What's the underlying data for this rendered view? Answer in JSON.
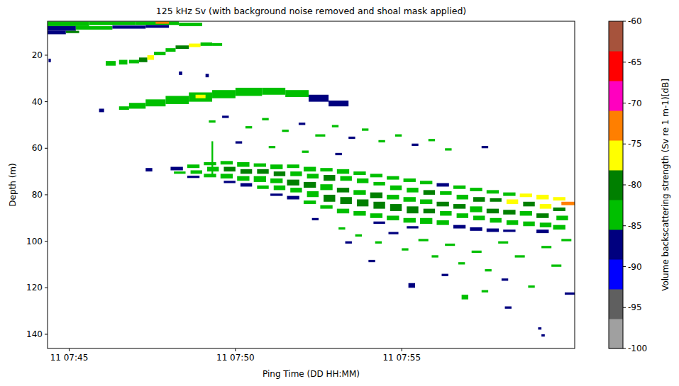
{
  "chart_data": {
    "type": "heatmap",
    "title": "125 kHz Sv (with background noise removed and shoal mask applied)",
    "x_label": "Ping Time (DD HH:MM)",
    "y_label": "Depth (m)",
    "xlim": [
      44.35,
      60.2
    ],
    "xticks": [
      {
        "value": 45,
        "label": "11 07:45"
      },
      {
        "value": 50,
        "label": "11 07:50"
      },
      {
        "value": 55,
        "label": "11 07:55"
      }
    ],
    "ylim": [
      146.1,
      5.4
    ],
    "yticks": [
      20,
      40,
      60,
      80,
      100,
      120,
      140
    ],
    "grid": false,
    "colorbar": {
      "label": "Volume backscattering strength (Sv re 1 m-1)[dB]",
      "range": [
        -100,
        -60
      ],
      "ticks": [
        -100,
        -95,
        -90,
        -85,
        -80,
        -75,
        -70,
        -65,
        -60
      ],
      "colors": [
        "#a0a0a0",
        "#5f5f5f",
        "#0000ff",
        "#00007f",
        "#00bf00",
        "#007f00",
        "#ffff00",
        "#ff7f00",
        "#ff00bf",
        "#ff0000",
        "#a6533c"
      ]
    },
    "cells": [
      [
        44.35,
        45.6,
        5.5,
        7.5,
        -84
      ],
      [
        44.35,
        45.2,
        7.5,
        9.5,
        -86
      ],
      [
        44.35,
        44.9,
        9.5,
        11,
        -88
      ],
      [
        44.9,
        45.3,
        9.5,
        10.5,
        -80
      ],
      [
        45.6,
        47.0,
        5.5,
        7,
        -82
      ],
      [
        45.2,
        46.3,
        7.5,
        9,
        -84
      ],
      [
        46.3,
        47.3,
        7.2,
        8.6,
        -87
      ],
      [
        47.0,
        48.3,
        5.5,
        7,
        -83
      ],
      [
        47.3,
        48.0,
        7,
        8.2,
        -86
      ],
      [
        48.3,
        49.0,
        6,
        7.5,
        -85
      ],
      [
        47.6,
        48.0,
        5.5,
        6.5,
        -72
      ],
      [
        44.38,
        44.45,
        21.5,
        23,
        -86
      ],
      [
        46.1,
        46.4,
        22.5,
        24.5,
        -83
      ],
      [
        46.5,
        46.75,
        22,
        24,
        -85
      ],
      [
        46.8,
        47.1,
        22,
        23.5,
        -82
      ],
      [
        47.1,
        47.35,
        21,
        23,
        -80
      ],
      [
        47.35,
        47.55,
        20,
        22,
        -76
      ],
      [
        47.55,
        47.9,
        18.5,
        20,
        -82
      ],
      [
        47.9,
        48.2,
        17,
        18.5,
        -83
      ],
      [
        48.2,
        48.6,
        15.8,
        17.3,
        -81
      ],
      [
        48.6,
        48.95,
        15,
        16.5,
        -77
      ],
      [
        48.95,
        49.3,
        14.5,
        16,
        -82
      ],
      [
        49.3,
        49.6,
        14.8,
        16,
        -85
      ],
      [
        48.3,
        48.4,
        27,
        28.5,
        -87
      ],
      [
        49.1,
        49.2,
        28,
        29.5,
        -86
      ],
      [
        45.9,
        46.05,
        43,
        44.5,
        -86
      ],
      [
        46.5,
        46.8,
        42,
        43.5,
        -85
      ],
      [
        46.8,
        47.3,
        40.5,
        43,
        -84
      ],
      [
        47.3,
        47.9,
        39,
        42,
        -83
      ],
      [
        47.9,
        48.6,
        37.5,
        41,
        -82
      ],
      [
        48.6,
        49.3,
        36,
        40,
        -83
      ],
      [
        49.3,
        50.0,
        35,
        38.5,
        -84
      ],
      [
        50.0,
        50.8,
        34,
        37.5,
        -82
      ],
      [
        50.8,
        51.5,
        34,
        37,
        -84
      ],
      [
        51.5,
        52.2,
        35,
        38,
        -85
      ],
      [
        52.2,
        52.8,
        37,
        40,
        -86
      ],
      [
        52.8,
        53.4,
        39.5,
        42,
        -87
      ],
      [
        48.8,
        49.1,
        37,
        38.5,
        -76
      ],
      [
        49.2,
        49.4,
        48,
        49,
        -85
      ],
      [
        49.6,
        49.8,
        46,
        47,
        -86
      ],
      [
        50.3,
        50.5,
        50.5,
        51.5,
        -84
      ],
      [
        50.8,
        51.0,
        47,
        48,
        -85
      ],
      [
        51.4,
        51.6,
        52,
        53,
        -83
      ],
      [
        51.9,
        52.1,
        49,
        50,
        -86
      ],
      [
        52.4,
        52.7,
        54,
        55,
        -84
      ],
      [
        52.9,
        53.1,
        50,
        51,
        -85
      ],
      [
        53.4,
        53.6,
        55,
        56,
        -86
      ],
      [
        53.8,
        54.0,
        51.5,
        52.5,
        -84
      ],
      [
        54.3,
        54.5,
        56.5,
        57.5,
        -85
      ],
      [
        54.8,
        55.0,
        54,
        55,
        -83
      ],
      [
        55.3,
        55.5,
        58,
        59,
        -86
      ],
      [
        55.8,
        56.0,
        56,
        57,
        -84
      ],
      [
        56.3,
        56.5,
        60,
        61,
        -85
      ],
      [
        57.4,
        57.6,
        59,
        60,
        -87
      ],
      [
        50.0,
        50.2,
        57,
        58,
        -86
      ],
      [
        51.0,
        51.2,
        59,
        60,
        -84
      ],
      [
        52.0,
        52.2,
        61,
        62,
        -85
      ],
      [
        53.0,
        53.2,
        62,
        63,
        -86
      ],
      [
        49.28,
        49.33,
        57,
        72,
        -84
      ],
      [
        47.3,
        47.5,
        68.5,
        70,
        -86
      ],
      [
        48.05,
        48.42,
        68,
        69.5,
        -86
      ],
      [
        48.15,
        48.5,
        70,
        71,
        -84
      ],
      [
        48.55,
        48.92,
        67,
        68.5,
        -85
      ],
      [
        48.65,
        49.0,
        69.5,
        71,
        -83
      ],
      [
        48.55,
        48.92,
        71.8,
        72.8,
        -86
      ],
      [
        49.05,
        49.42,
        66,
        67.3,
        -84
      ],
      [
        49.15,
        49.5,
        68,
        70,
        -82
      ],
      [
        49.05,
        49.42,
        71,
        72.5,
        -85
      ],
      [
        49.55,
        49.92,
        65.5,
        67,
        -83
      ],
      [
        49.65,
        50.0,
        68,
        70,
        -81
      ],
      [
        49.55,
        49.92,
        71,
        73,
        -84
      ],
      [
        49.65,
        50.0,
        74,
        75,
        -86
      ],
      [
        50.05,
        50.42,
        66,
        68,
        -82
      ],
      [
        50.15,
        50.5,
        69,
        71,
        -80
      ],
      [
        50.05,
        50.42,
        72,
        74,
        -83
      ],
      [
        50.15,
        50.5,
        75,
        76.5,
        -86
      ],
      [
        50.55,
        50.92,
        66.5,
        68,
        -84
      ],
      [
        50.65,
        51.0,
        69,
        71,
        -81
      ],
      [
        50.55,
        50.92,
        72,
        74.5,
        -82
      ],
      [
        50.65,
        51.0,
        76,
        77.5,
        -85
      ],
      [
        51.05,
        51.42,
        67,
        69,
        -83
      ],
      [
        51.15,
        51.5,
        70,
        72,
        -81
      ],
      [
        51.05,
        51.42,
        73,
        75,
        -82
      ],
      [
        51.15,
        51.5,
        76,
        78,
        -84
      ],
      [
        51.05,
        51.42,
        79.5,
        80.5,
        -87
      ],
      [
        51.55,
        51.92,
        67,
        68.5,
        -82
      ],
      [
        51.65,
        52.0,
        70,
        72,
        -84
      ],
      [
        51.55,
        51.92,
        73.5,
        76,
        -81
      ],
      [
        51.65,
        52.0,
        77,
        79,
        -83
      ],
      [
        51.55,
        51.92,
        80.5,
        82,
        -86
      ],
      [
        52.05,
        52.42,
        68,
        70,
        -83
      ],
      [
        52.15,
        52.5,
        71,
        73,
        -82
      ],
      [
        52.05,
        52.42,
        74.5,
        77,
        -80
      ],
      [
        52.15,
        52.5,
        78.5,
        81,
        -82
      ],
      [
        52.05,
        52.42,
        82.5,
        84,
        -85
      ],
      [
        52.55,
        52.92,
        68.5,
        70,
        -84
      ],
      [
        52.65,
        53.0,
        71.5,
        74,
        -81
      ],
      [
        52.55,
        52.92,
        75.5,
        78,
        -82
      ],
      [
        52.65,
        53.0,
        80,
        83,
        -80
      ],
      [
        52.55,
        52.92,
        84.5,
        86,
        -85
      ],
      [
        53.05,
        53.42,
        69,
        71,
        -83
      ],
      [
        53.15,
        53.5,
        72,
        74,
        -82
      ],
      [
        53.05,
        53.42,
        77,
        79,
        -81
      ],
      [
        53.15,
        53.5,
        81,
        84,
        -80
      ],
      [
        53.05,
        53.42,
        86,
        88,
        -84
      ],
      [
        53.55,
        53.92,
        70,
        71.5,
        -84
      ],
      [
        53.65,
        54.0,
        73,
        75,
        -82
      ],
      [
        53.55,
        53.92,
        78,
        80,
        -83
      ],
      [
        53.65,
        54.0,
        82,
        85,
        -80
      ],
      [
        53.55,
        53.92,
        87,
        89,
        -85
      ],
      [
        54.05,
        54.42,
        71,
        72.5,
        -83
      ],
      [
        54.15,
        54.5,
        74.5,
        76,
        -84
      ],
      [
        54.05,
        54.42,
        79,
        81.5,
        -81
      ],
      [
        54.15,
        54.5,
        83,
        86,
        -81
      ],
      [
        54.05,
        54.42,
        88,
        90,
        -84
      ],
      [
        54.15,
        54.5,
        91.5,
        92.5,
        -87
      ],
      [
        54.55,
        54.92,
        72,
        73.5,
        -84
      ],
      [
        54.65,
        55.0,
        76,
        78,
        -82
      ],
      [
        54.55,
        54.92,
        80,
        82,
        -83
      ],
      [
        54.65,
        55.0,
        84,
        87,
        -80
      ],
      [
        54.55,
        54.92,
        89,
        91,
        -83
      ],
      [
        55.05,
        55.42,
        73,
        74.5,
        -85
      ],
      [
        55.15,
        55.5,
        77,
        79,
        -82
      ],
      [
        55.05,
        55.42,
        81,
        83,
        -82
      ],
      [
        55.15,
        55.5,
        85,
        88,
        -81
      ],
      [
        55.05,
        55.42,
        90,
        92,
        -84
      ],
      [
        55.15,
        55.5,
        93.5,
        94.5,
        -87
      ],
      [
        55.55,
        55.92,
        74,
        75.5,
        -84
      ],
      [
        55.65,
        56.0,
        78,
        80,
        -81
      ],
      [
        55.55,
        55.92,
        82,
        84,
        -83
      ],
      [
        55.65,
        56.0,
        86,
        88,
        -80
      ],
      [
        55.55,
        55.92,
        90,
        92.5,
        -84
      ],
      [
        56.05,
        56.42,
        75,
        76.5,
        -86
      ],
      [
        56.15,
        56.5,
        78.5,
        80,
        -82
      ],
      [
        56.05,
        56.42,
        83,
        85,
        -80
      ],
      [
        56.15,
        56.5,
        87,
        89,
        -82
      ],
      [
        56.05,
        56.42,
        91,
        93,
        -84
      ],
      [
        56.55,
        56.92,
        76,
        77.5,
        -84
      ],
      [
        56.65,
        57.0,
        80,
        82,
        -83
      ],
      [
        56.55,
        56.92,
        84,
        86,
        -81
      ],
      [
        56.65,
        57.0,
        88,
        90,
        -82
      ],
      [
        56.55,
        56.92,
        93,
        94.5,
        -86
      ],
      [
        57.05,
        57.42,
        77,
        78.5,
        -85
      ],
      [
        57.15,
        57.5,
        81,
        83,
        -80
      ],
      [
        57.05,
        57.42,
        85,
        87.5,
        -82
      ],
      [
        57.15,
        57.5,
        89,
        91,
        -83
      ],
      [
        57.05,
        57.42,
        94,
        95.5,
        -86
      ],
      [
        57.55,
        57.92,
        78,
        79.5,
        -83
      ],
      [
        57.65,
        58.0,
        81.5,
        83,
        -79
      ],
      [
        57.55,
        57.92,
        86,
        88,
        -81
      ],
      [
        57.65,
        58.0,
        90,
        92,
        -84
      ],
      [
        57.55,
        57.92,
        94.5,
        96,
        -86
      ],
      [
        58.05,
        58.42,
        79,
        80.5,
        -82
      ],
      [
        58.15,
        58.5,
        82,
        84,
        -78
      ],
      [
        58.05,
        58.42,
        86.5,
        88.5,
        -81
      ],
      [
        58.15,
        58.5,
        91,
        93,
        -83
      ],
      [
        58.05,
        58.42,
        95,
        96,
        -87
      ],
      [
        58.55,
        58.92,
        79.5,
        81,
        -77
      ],
      [
        58.65,
        59.0,
        83,
        85,
        -80
      ],
      [
        58.55,
        58.92,
        87,
        89,
        -82
      ],
      [
        58.65,
        59.0,
        91.5,
        93.5,
        -84
      ],
      [
        59.05,
        59.42,
        80,
        82,
        -76
      ],
      [
        59.15,
        59.5,
        84,
        86,
        -76
      ],
      [
        59.05,
        59.42,
        88,
        90,
        -81
      ],
      [
        59.15,
        59.5,
        92,
        94,
        -84
      ],
      [
        59.05,
        59.42,
        95,
        96.5,
        -86
      ],
      [
        59.55,
        59.92,
        81,
        82.5,
        -75
      ],
      [
        59.8,
        60.2,
        83,
        84.5,
        -72
      ],
      [
        59.55,
        59.92,
        85.5,
        87,
        -80
      ],
      [
        59.65,
        60.0,
        89,
        91,
        -82
      ],
      [
        59.55,
        59.92,
        93,
        95,
        -84
      ],
      [
        52.3,
        52.5,
        90,
        91,
        -86
      ],
      [
        53.1,
        53.3,
        94,
        95,
        -85
      ],
      [
        53.6,
        53.8,
        97,
        98,
        -84
      ],
      [
        54.2,
        54.4,
        100,
        101,
        -85
      ],
      [
        54.6,
        54.9,
        96,
        97,
        -86
      ],
      [
        55.0,
        55.2,
        103,
        104,
        -84
      ],
      [
        55.5,
        55.8,
        99,
        100,
        -85
      ],
      [
        55.9,
        56.1,
        106,
        107,
        -83
      ],
      [
        56.3,
        56.6,
        101,
        102,
        -84
      ],
      [
        56.7,
        56.9,
        109,
        110,
        -85
      ],
      [
        57.1,
        57.4,
        104,
        105,
        -83
      ],
      [
        57.5,
        57.7,
        112,
        113,
        -84
      ],
      [
        57.9,
        58.2,
        100,
        101,
        -85
      ],
      [
        58.0,
        58.2,
        116,
        117,
        -86
      ],
      [
        58.4,
        58.7,
        106,
        107,
        -84
      ],
      [
        58.8,
        59.0,
        119,
        120,
        -85
      ],
      [
        59.2,
        59.5,
        102,
        103,
        -84
      ],
      [
        59.5,
        59.8,
        110,
        111,
        -85
      ],
      [
        59.8,
        60.1,
        99,
        100,
        -83
      ],
      [
        59.9,
        60.2,
        122,
        123,
        -86
      ],
      [
        56.2,
        56.4,
        114,
        115,
        -86
      ],
      [
        55.2,
        55.4,
        118,
        120,
        -87
      ],
      [
        56.8,
        57.0,
        123,
        125,
        -85
      ],
      [
        58.1,
        58.3,
        128,
        129,
        -87
      ],
      [
        59.1,
        59.2,
        137,
        138,
        -88
      ],
      [
        59.2,
        59.3,
        140,
        141,
        -87
      ],
      [
        57.4,
        57.6,
        121,
        122,
        -85
      ],
      [
        54.0,
        54.2,
        108,
        109,
        -86
      ],
      [
        53.3,
        53.5,
        100,
        101,
        -88
      ]
    ]
  }
}
